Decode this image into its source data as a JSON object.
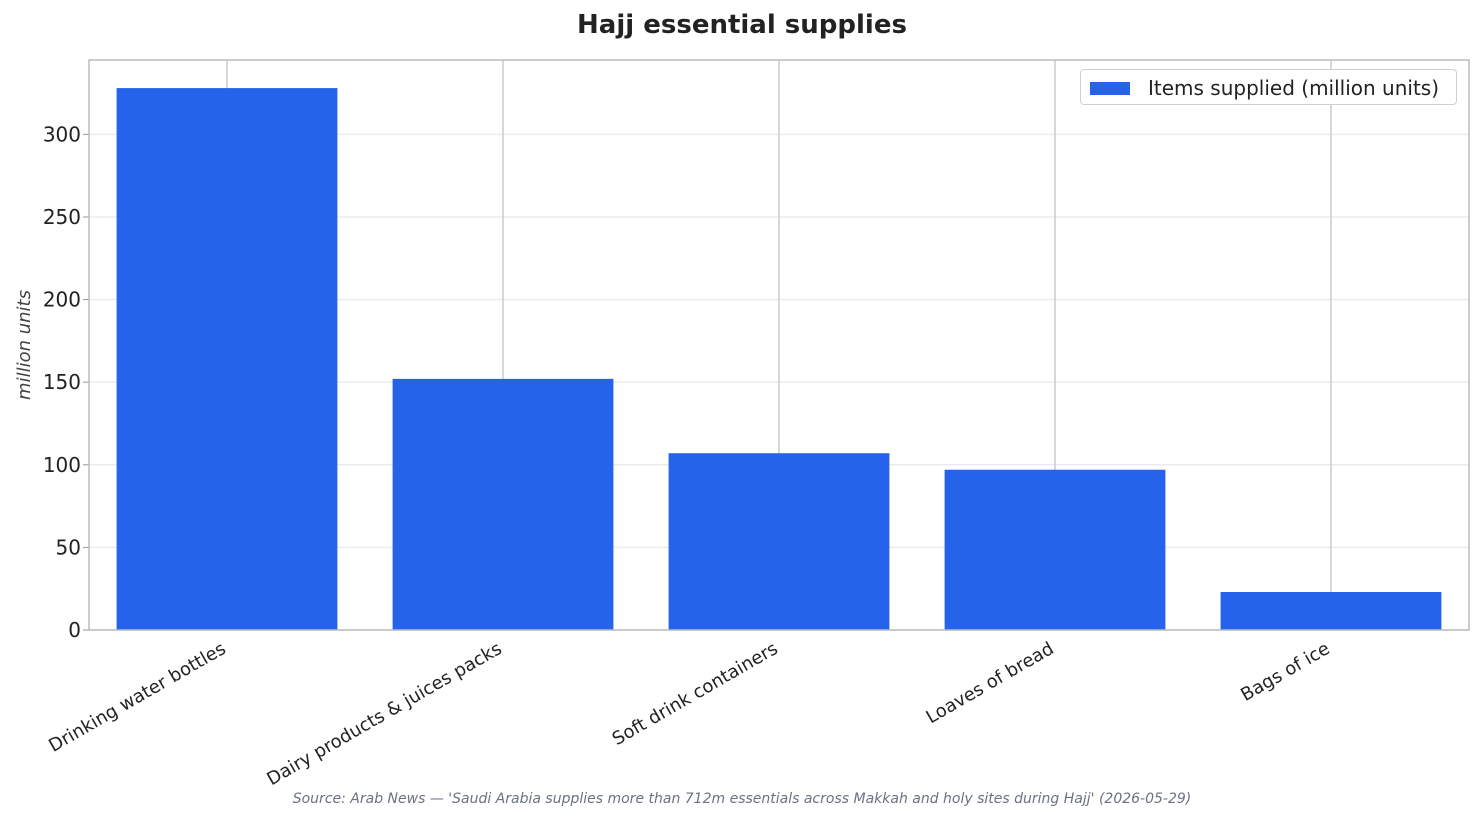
{
  "chart_data": {
    "type": "bar",
    "title": "Hajj essential supplies",
    "categories": [
      "Drinking water bottles",
      "Dairy products & juices packs",
      "Soft drink containers",
      "Loaves of bread",
      "Bags of ice"
    ],
    "series": [
      {
        "name": "Items supplied (million units)",
        "values": [
          328,
          152,
          107,
          97,
          23
        ]
      }
    ],
    "xlabel": "",
    "ylabel": "million units",
    "ylim": [
      0,
      345
    ],
    "yticks": [
      0,
      50,
      100,
      150,
      200,
      250,
      300
    ],
    "grid": true,
    "legend_position": "top-right",
    "colors": {
      "bar": "#2563eb",
      "grid": "#ebebeb",
      "xgrid": "#cccccc",
      "axis": "#bbbbbb"
    }
  },
  "source": "Source: Arab News — 'Saudi Arabia supplies more than 712m essentials across Makkah and holy sites during Hajj' (2026-05-29)"
}
